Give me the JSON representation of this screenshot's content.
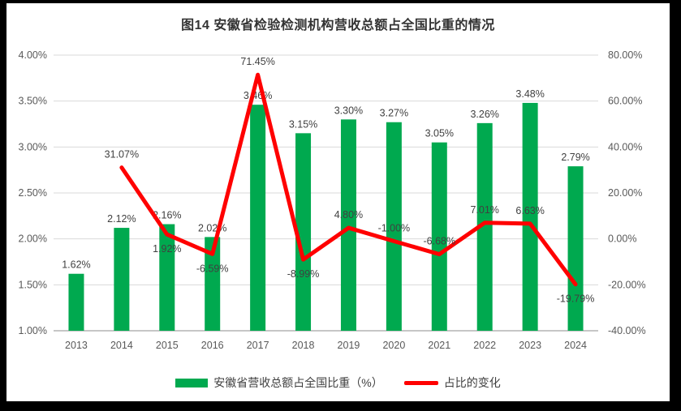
{
  "title": "图14 安徽省检验检测机构营收总额占全国比重的情况",
  "chart_data": {
    "type": "combo",
    "categories": [
      "2013",
      "2014",
      "2015",
      "2016",
      "2017",
      "2018",
      "2019",
      "2020",
      "2021",
      "2022",
      "2023",
      "2024"
    ],
    "series": [
      {
        "name": "安徽省营收总额占全国比重（%）",
        "type": "bar",
        "axis": "left",
        "color": "#00A94F",
        "values": [
          1.62,
          2.12,
          2.16,
          2.02,
          3.46,
          3.15,
          3.3,
          3.27,
          3.05,
          3.26,
          3.48,
          2.79
        ],
        "labels": [
          "1.62%",
          "2.12%",
          "2.16%",
          "2.02%",
          "3.46%",
          "3.15%",
          "3.30%",
          "3.27%",
          "3.05%",
          "3.26%",
          "3.48%",
          "2.79%"
        ]
      },
      {
        "name": "占比的变化",
        "type": "line",
        "axis": "right",
        "color": "#FF0000",
        "values": [
          null,
          31.07,
          1.92,
          -6.59,
          71.45,
          -8.99,
          4.8,
          -1.0,
          -6.68,
          7.01,
          6.63,
          -19.79
        ],
        "labels": [
          null,
          "31.07%",
          "1.92%",
          "-6.59%",
          "71.45%",
          "-8.99%",
          "4.80%",
          "-1.00%",
          "-6.68%",
          "7.01%",
          "6.63%",
          "-19.79%"
        ],
        "label_positions": [
          null,
          "above",
          "below",
          "below",
          "above",
          "below",
          "above",
          "above",
          "above",
          "above",
          "above",
          "below"
        ]
      }
    ],
    "left_axis": {
      "min": 1.0,
      "max": 4.0,
      "step": 0.5,
      "tick_labels": [
        "1.00%",
        "1.50%",
        "2.00%",
        "2.50%",
        "3.00%",
        "3.50%",
        "4.00%"
      ]
    },
    "right_axis": {
      "min": -40,
      "max": 80,
      "step": 20,
      "tick_labels": [
        "-40.00%",
        "-20.00%",
        "0.00%",
        "20.00%",
        "40.00%",
        "60.00%",
        "80.00%"
      ]
    },
    "grid": true,
    "legend_position": "bottom"
  },
  "legend": {
    "items": [
      {
        "label": "安徽省营收总额占全国比重（%）",
        "marker": "bar",
        "color": "#00A94F"
      },
      {
        "label": "占比的变化",
        "marker": "line",
        "color": "#FF0000"
      }
    ]
  },
  "colors": {
    "bar": "#00A94F",
    "line": "#FF0000",
    "grid": "#D9D9D9",
    "axis_line": "#C6C6C6",
    "data_label": "#404040",
    "axis_text": "#595959",
    "title_text": "#333333",
    "frame": "#000000",
    "background": "#FFFFFF"
  }
}
